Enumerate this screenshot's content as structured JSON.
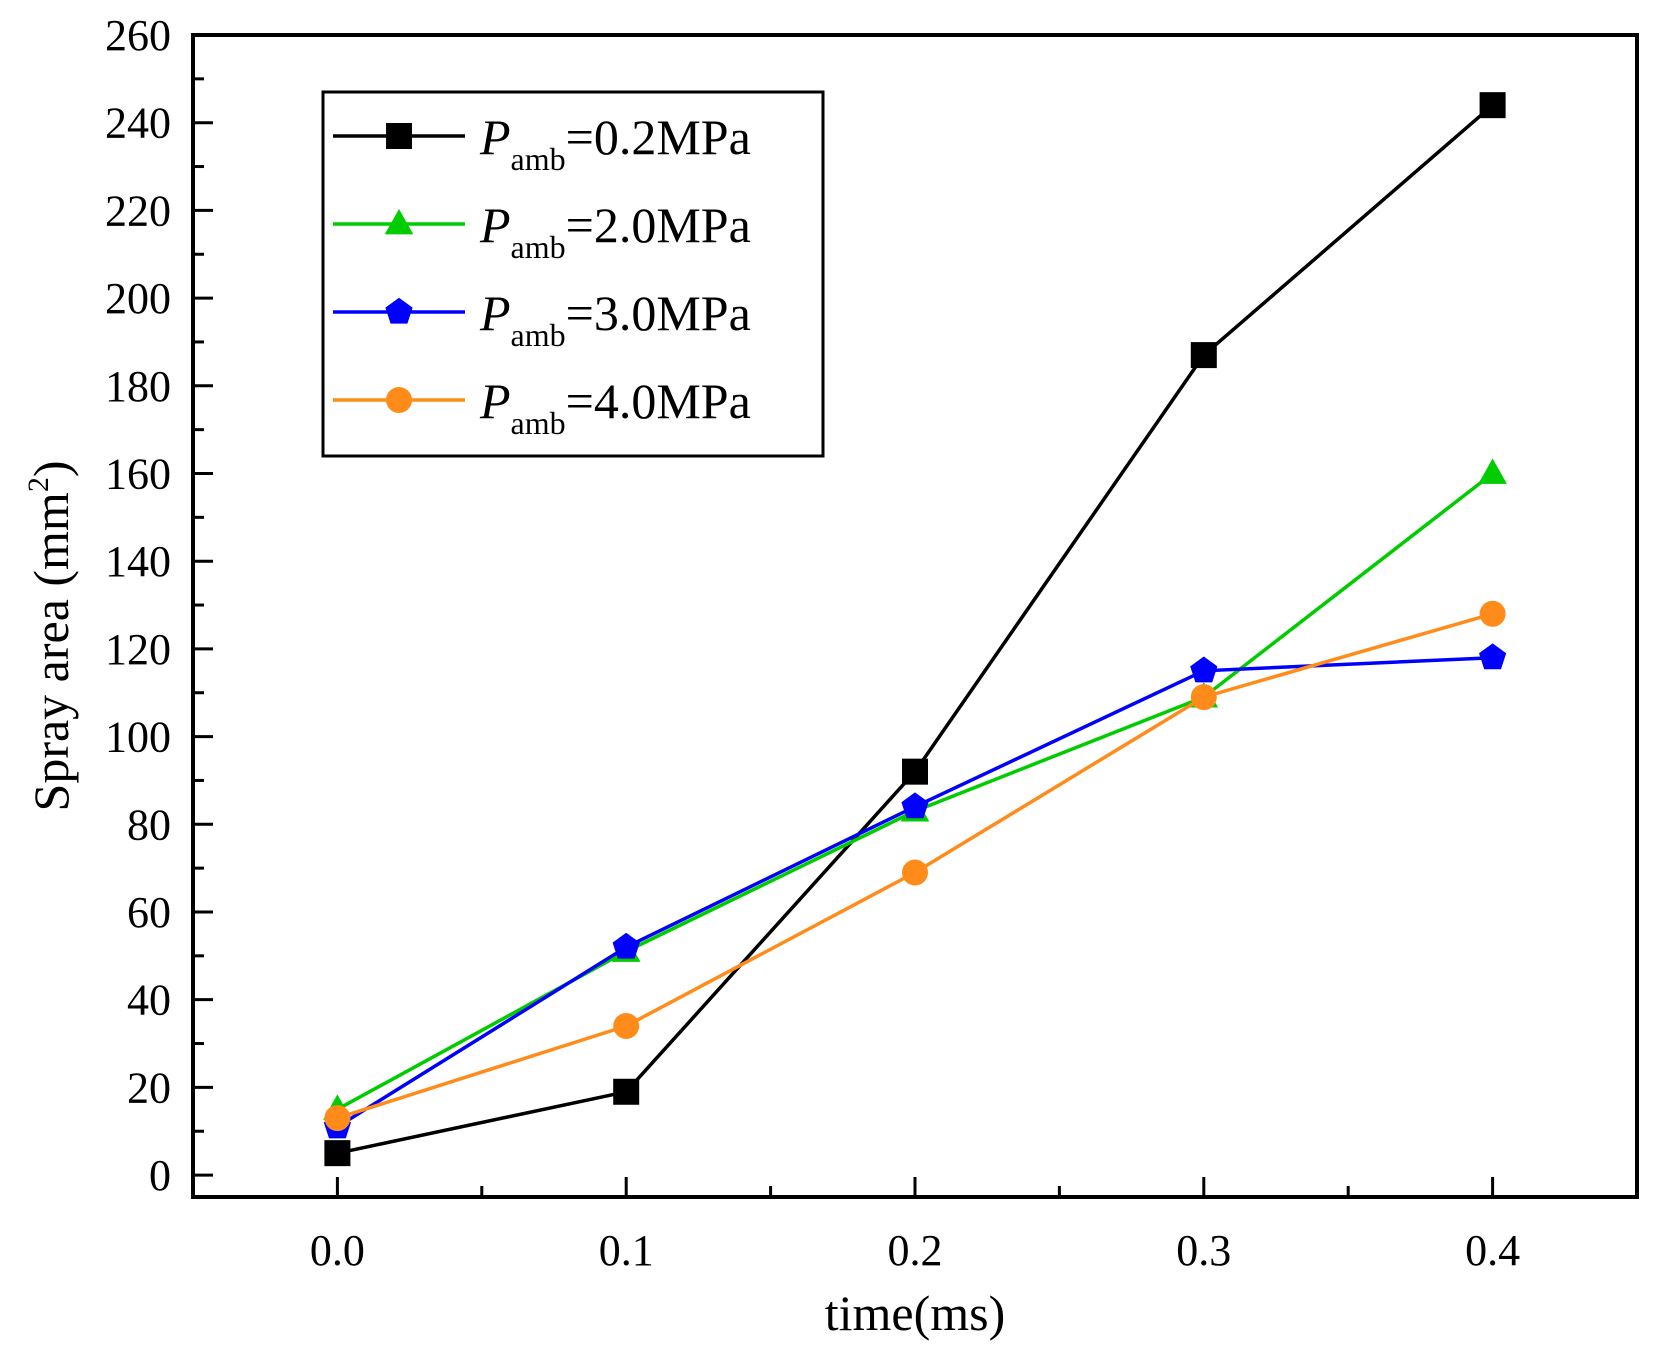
{
  "chart_data": {
    "type": "line",
    "title": "",
    "xlabel": "time(ms)",
    "ylabel": "Spray area (mm",
    "ylabel_sup": "2",
    "ylabel_close": ")",
    "xlim": [
      -0.05,
      0.45
    ],
    "ylim": [
      -5,
      260
    ],
    "x_ticks": [
      0.0,
      0.1,
      0.2,
      0.3,
      0.4
    ],
    "x_tick_labels": [
      "0.0",
      "0.1",
      "0.2",
      "0.3",
      "0.4"
    ],
    "y_ticks": [
      0,
      20,
      40,
      60,
      80,
      100,
      120,
      140,
      160,
      180,
      200,
      220,
      240,
      260
    ],
    "y_tick_labels": [
      "0",
      "20",
      "40",
      "60",
      "80",
      "100",
      "120",
      "140",
      "160",
      "180",
      "200",
      "220",
      "240",
      "260"
    ],
    "grid": false,
    "legend_position": "top-left",
    "x": [
      0.0,
      0.1,
      0.2,
      0.3,
      0.4
    ],
    "series": [
      {
        "name": "Pamb=0.2MPa",
        "symbol": "P",
        "sub": "amb",
        "value_text": "=0.2MPa",
        "color": "#000000",
        "marker": "square",
        "values": [
          5,
          19,
          92,
          187,
          244
        ]
      },
      {
        "name": "Pamb=2.0MPa",
        "symbol": "P",
        "sub": "amb",
        "value_text": "=2.0MPa",
        "color": "#00cc00",
        "marker": "triangle",
        "values": [
          15,
          51,
          83,
          109,
          160
        ]
      },
      {
        "name": "Pamb=3.0MPa",
        "symbol": "P",
        "sub": "amb",
        "value_text": "=3.0MPa",
        "color": "#0000ff",
        "marker": "pentagon",
        "values": [
          11,
          52,
          84,
          115,
          118
        ]
      },
      {
        "name": "Pamb=4.0MPa",
        "symbol": "P",
        "sub": "amb",
        "value_text": "=4.0MPa",
        "color": "#ff8c1a",
        "marker": "circle",
        "values": [
          13,
          34,
          69,
          109,
          128
        ]
      }
    ]
  }
}
